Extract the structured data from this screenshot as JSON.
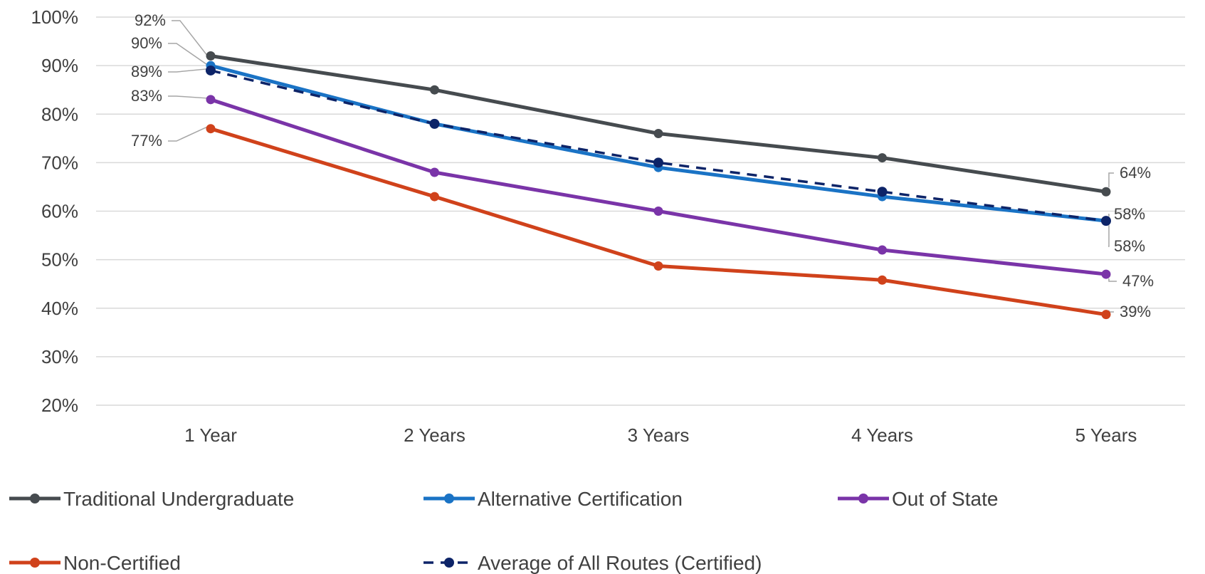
{
  "chart_data": {
    "type": "line",
    "categories": [
      "1 Year",
      "2 Years",
      "3 Years",
      "4 Years",
      "5 Years"
    ],
    "ylim": [
      20,
      100
    ],
    "yticks": [
      20,
      30,
      40,
      50,
      60,
      70,
      80,
      90,
      100
    ],
    "ytick_labels": [
      "20%",
      "30%",
      "40%",
      "50%",
      "60%",
      "70%",
      "80%",
      "90%",
      "100%"
    ],
    "grid": true,
    "legend_position": "bottom",
    "series": [
      {
        "name": "Traditional Undergraduate",
        "values": [
          92,
          85,
          76,
          71,
          64
        ],
        "color": "#464b4f",
        "dashed": false,
        "labels": [
          {
            "index": 0,
            "text": "92%"
          },
          {
            "index": 4,
            "text": "64%"
          }
        ]
      },
      {
        "name": "Alternative Certification",
        "values": [
          90,
          78,
          69,
          63,
          58
        ],
        "color": "#1a73c5",
        "dashed": false,
        "labels": [
          {
            "index": 0,
            "text": "90%"
          },
          {
            "index": 4,
            "text": "58%"
          }
        ]
      },
      {
        "name": "Out of State",
        "values": [
          83,
          68,
          60,
          52,
          47
        ],
        "color": "#7a34a8",
        "dashed": false,
        "labels": [
          {
            "index": 0,
            "text": "83%"
          },
          {
            "index": 4,
            "text": "47%"
          }
        ]
      },
      {
        "name": "Non-Certified",
        "values": [
          77,
          63,
          48.7,
          45.8,
          38.7
        ],
        "color": "#d0421b",
        "dashed": false,
        "labels": [
          {
            "index": 0,
            "text": "77%"
          },
          {
            "index": 4,
            "text": "39%"
          }
        ]
      },
      {
        "name": "Average of All Routes (Certified)",
        "values": [
          89,
          78,
          70,
          64,
          58
        ],
        "color": "#0d2468",
        "dashed": true,
        "labels": [
          {
            "index": 0,
            "text": "89%"
          },
          {
            "index": 4,
            "text": "58%"
          }
        ]
      }
    ]
  }
}
